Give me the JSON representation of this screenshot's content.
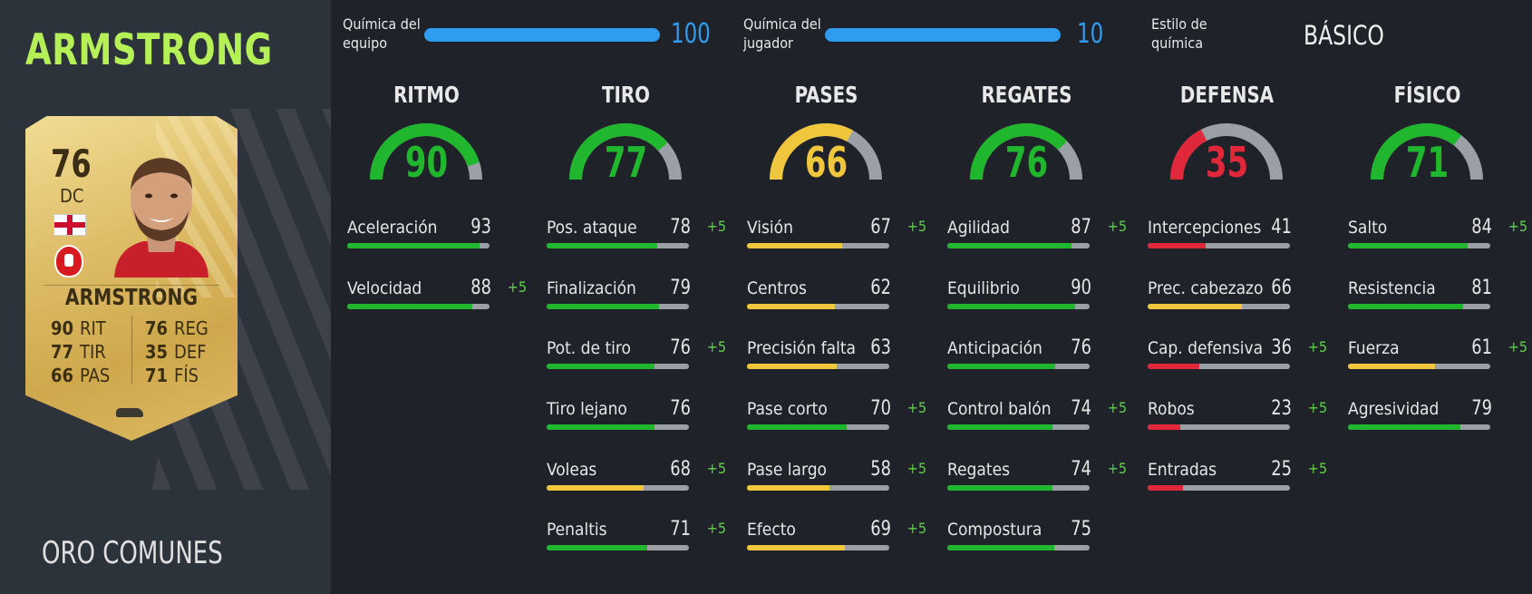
{
  "player": {
    "name": "ARMSTRONG",
    "rarity": "ORO COMUNES",
    "card": {
      "rating": "76",
      "position": "DC",
      "name": "ARMSTRONG",
      "stats": {
        "rit_val": "90",
        "rit_lbl": "RIT",
        "tir_val": "77",
        "tir_lbl": "TIR",
        "pas_val": "66",
        "pas_lbl": "PAS",
        "reg_val": "76",
        "reg_lbl": "REG",
        "def_val": "35",
        "def_lbl": "DEF",
        "fis_val": "71",
        "fis_lbl": "FÍS"
      }
    }
  },
  "chemistry": {
    "team_label_1": "Química del",
    "team_label_2": "equipo",
    "team_value": "100",
    "team_fraction": 1.0,
    "player_label_1": "Química del",
    "player_label_2": "jugador",
    "player_value": "10",
    "player_fraction": 1.0,
    "style_label_1": "Estilo de",
    "style_label_2": "química",
    "style_value": "BÁSICO"
  },
  "colors": {
    "green": "#20b62d",
    "yellow": "#f0c63c",
    "red": "#e0283a",
    "track": "#9aa0a6",
    "boost": "#5fd04a",
    "chem_blue": "#2f9cf0",
    "name_green": "#b6f057"
  },
  "categories": [
    {
      "title": "RITMO",
      "value": "90",
      "color": "green",
      "attributes": [
        {
          "name": "Aceleración",
          "value": "93",
          "boost": ""
        },
        {
          "name": "Velocidad",
          "value": "88",
          "boost": "+5"
        }
      ]
    },
    {
      "title": "TIRO",
      "value": "77",
      "color": "green",
      "attributes": [
        {
          "name": "Pos. ataque",
          "value": "78",
          "boost": "+5"
        },
        {
          "name": "Finalización",
          "value": "79",
          "boost": ""
        },
        {
          "name": "Pot. de tiro",
          "value": "76",
          "boost": "+5"
        },
        {
          "name": "Tiro lejano",
          "value": "76",
          "boost": ""
        },
        {
          "name": "Voleas",
          "value": "68",
          "boost": "+5"
        },
        {
          "name": "Penaltis",
          "value": "71",
          "boost": "+5"
        }
      ]
    },
    {
      "title": "PASES",
      "value": "66",
      "color": "yellow",
      "attributes": [
        {
          "name": "Visión",
          "value": "67",
          "boost": "+5"
        },
        {
          "name": "Centros",
          "value": "62",
          "boost": ""
        },
        {
          "name": "Precisión falta",
          "value": "63",
          "boost": ""
        },
        {
          "name": "Pase corto",
          "value": "70",
          "boost": "+5"
        },
        {
          "name": "Pase largo",
          "value": "58",
          "boost": "+5"
        },
        {
          "name": "Efecto",
          "value": "69",
          "boost": "+5"
        }
      ]
    },
    {
      "title": "REGATES",
      "value": "76",
      "color": "green",
      "attributes": [
        {
          "name": "Agilidad",
          "value": "87",
          "boost": "+5"
        },
        {
          "name": "Equilibrio",
          "value": "90",
          "boost": ""
        },
        {
          "name": "Anticipación",
          "value": "76",
          "boost": ""
        },
        {
          "name": "Control balón",
          "value": "74",
          "boost": "+5"
        },
        {
          "name": "Regates",
          "value": "74",
          "boost": "+5"
        },
        {
          "name": "Compostura",
          "value": "75",
          "boost": ""
        }
      ]
    },
    {
      "title": "DEFENSA",
      "value": "35",
      "color": "red",
      "attributes": [
        {
          "name": "Intercepciones",
          "value": "41",
          "boost": ""
        },
        {
          "name": "Prec. cabezazo",
          "value": "66",
          "boost": ""
        },
        {
          "name": "Cap. defensiva",
          "value": "36",
          "boost": "+5"
        },
        {
          "name": "Robos",
          "value": "23",
          "boost": "+5"
        },
        {
          "name": "Entradas",
          "value": "25",
          "boost": "+5"
        }
      ]
    },
    {
      "title": "FÍSICO",
      "value": "71",
      "color": "green",
      "attributes": [
        {
          "name": "Salto",
          "value": "84",
          "boost": "+5"
        },
        {
          "name": "Resistencia",
          "value": "81",
          "boost": ""
        },
        {
          "name": "Fuerza",
          "value": "61",
          "boost": "+5"
        },
        {
          "name": "Agresividad",
          "value": "79",
          "boost": ""
        }
      ]
    }
  ]
}
